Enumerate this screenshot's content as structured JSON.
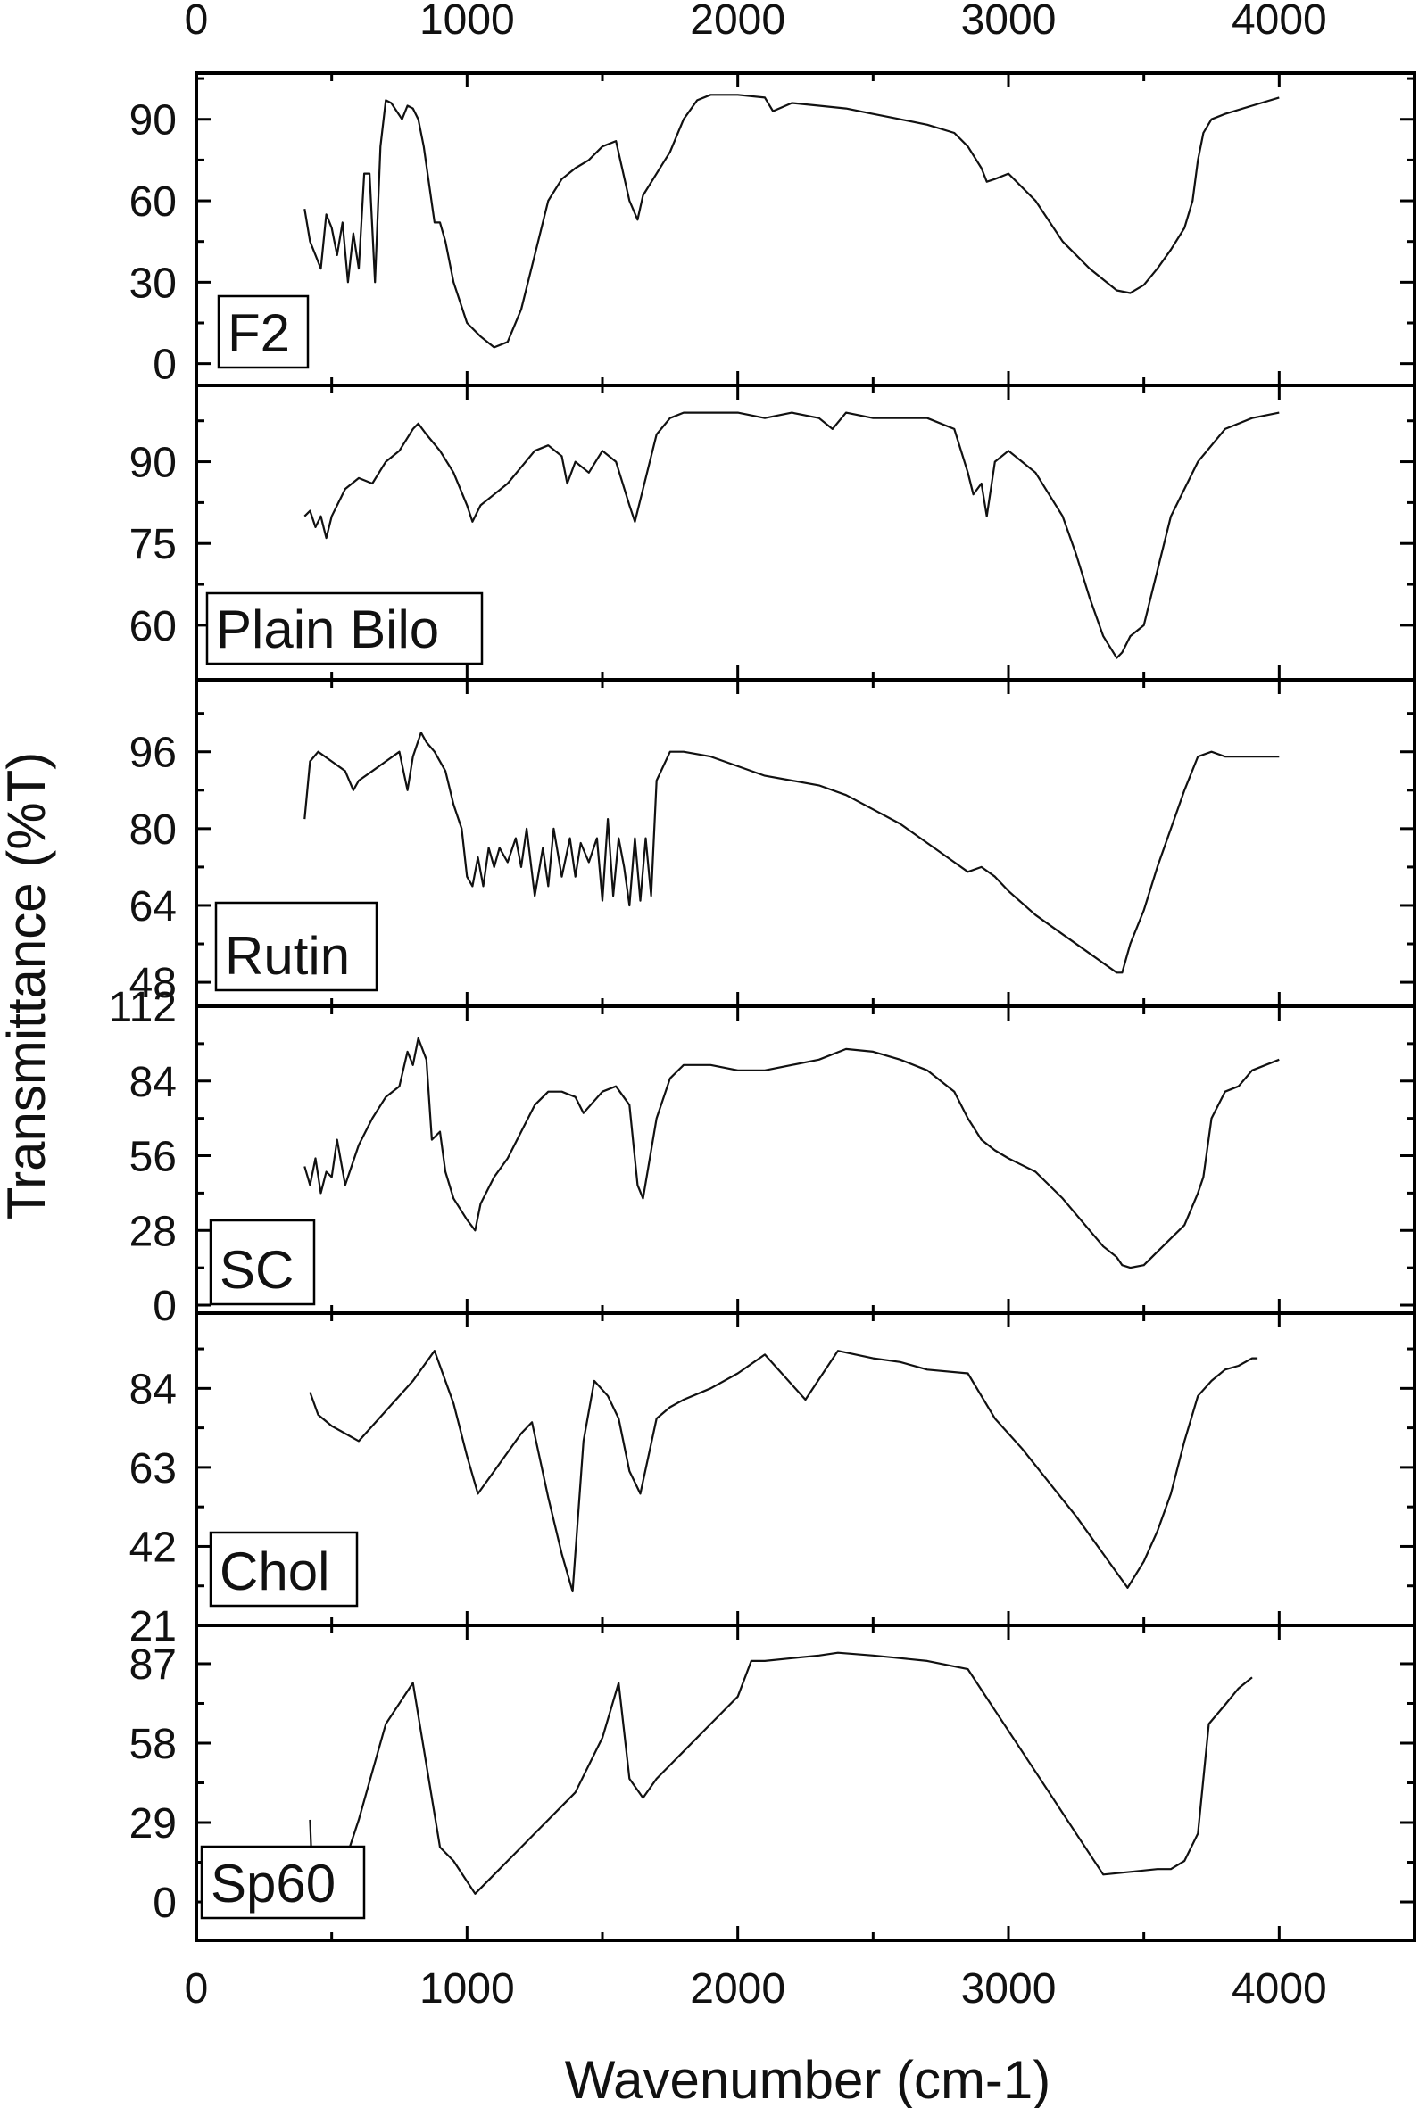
{
  "chart_data": {
    "type": "line",
    "xlabel": "Wavenumber (cm-1)",
    "ylabel": "Transmittance (%T)",
    "xlim": [
      0,
      4500
    ],
    "xticks": [
      0,
      1000,
      2000,
      3000,
      4000
    ],
    "xtick_labels": [
      "0",
      "1000",
      "2000",
      "3000",
      "4000"
    ],
    "grid": false,
    "panels": [
      {
        "name": "F2",
        "ylim": [
          -8,
          107
        ],
        "yticks": [
          0,
          30,
          60,
          90
        ],
        "ytick_labels": [
          "0",
          "30",
          "60",
          "90"
        ],
        "x": [
          400,
          420,
          440,
          460,
          480,
          500,
          520,
          540,
          560,
          580,
          600,
          620,
          640,
          660,
          680,
          700,
          720,
          760,
          780,
          800,
          820,
          840,
          880,
          900,
          920,
          950,
          1000,
          1050,
          1100,
          1150,
          1200,
          1250,
          1300,
          1350,
          1400,
          1450,
          1500,
          1550,
          1600,
          1630,
          1650,
          1700,
          1750,
          1800,
          1850,
          1900,
          2000,
          2100,
          2130,
          2200,
          2300,
          2400,
          2500,
          2600,
          2700,
          2800,
          2850,
          2900,
          2920,
          2950,
          3000,
          3100,
          3200,
          3300,
          3400,
          3450,
          3500,
          3550,
          3600,
          3650,
          3680,
          3700,
          3720,
          3750,
          3800,
          3900,
          4000
        ],
        "y": [
          57,
          45,
          40,
          35,
          55,
          50,
          40,
          52,
          30,
          48,
          35,
          70,
          70,
          30,
          80,
          97,
          96,
          90,
          95,
          94,
          90,
          80,
          52,
          52,
          45,
          30,
          15,
          10,
          6,
          8,
          20,
          40,
          60,
          68,
          72,
          75,
          80,
          82,
          60,
          53,
          62,
          70,
          78,
          90,
          97,
          99,
          99,
          98,
          93,
          96,
          95,
          94,
          92,
          90,
          88,
          85,
          80,
          72,
          67,
          68,
          70,
          60,
          45,
          35,
          27,
          26,
          29,
          35,
          42,
          50,
          60,
          75,
          85,
          90,
          92,
          95,
          98
        ]
      },
      {
        "name": "Plain Bilo",
        "ylim": [
          50,
          104
        ],
        "yticks": [
          60,
          75,
          90
        ],
        "ytick_labels": [
          "60",
          "75",
          "90"
        ],
        "x": [
          400,
          420,
          440,
          460,
          480,
          500,
          550,
          600,
          650,
          700,
          750,
          800,
          820,
          850,
          900,
          950,
          1000,
          1020,
          1050,
          1100,
          1150,
          1200,
          1250,
          1300,
          1350,
          1370,
          1400,
          1450,
          1500,
          1550,
          1600,
          1620,
          1650,
          1700,
          1750,
          1800,
          1900,
          2000,
          2100,
          2200,
          2300,
          2350,
          2400,
          2500,
          2600,
          2700,
          2800,
          2850,
          2870,
          2900,
          2920,
          2950,
          3000,
          3100,
          3200,
          3250,
          3300,
          3350,
          3400,
          3420,
          3450,
          3500,
          3550,
          3600,
          3700,
          3800,
          3900,
          4000
        ],
        "y": [
          80,
          81,
          78,
          80,
          76,
          80,
          85,
          87,
          86,
          90,
          92,
          96,
          97,
          95,
          92,
          88,
          82,
          79,
          82,
          84,
          86,
          89,
          92,
          93,
          91,
          86,
          90,
          88,
          92,
          90,
          82,
          79,
          85,
          95,
          98,
          99,
          99,
          99,
          98,
          99,
          98,
          96,
          99,
          98,
          98,
          98,
          96,
          88,
          84,
          86,
          80,
          90,
          92,
          88,
          80,
          73,
          65,
          58,
          54,
          55,
          58,
          60,
          70,
          80,
          90,
          96,
          98,
          99
        ]
      },
      {
        "name": "Rutin",
        "ylim": [
          43,
          111
        ],
        "yticks": [
          48,
          64,
          80,
          96
        ],
        "ytick_labels": [
          "48",
          "64",
          "80",
          "96"
        ],
        "x": [
          400,
          420,
          450,
          500,
          550,
          580,
          600,
          650,
          700,
          750,
          780,
          800,
          830,
          850,
          880,
          920,
          950,
          980,
          1000,
          1020,
          1040,
          1060,
          1080,
          1100,
          1120,
          1150,
          1180,
          1200,
          1220,
          1250,
          1280,
          1300,
          1320,
          1350,
          1380,
          1400,
          1420,
          1450,
          1480,
          1500,
          1520,
          1540,
          1560,
          1580,
          1600,
          1620,
          1640,
          1660,
          1680,
          1700,
          1750,
          1800,
          1900,
          2000,
          2100,
          2200,
          2300,
          2400,
          2500,
          2600,
          2700,
          2800,
          2850,
          2900,
          2950,
          3000,
          3100,
          3200,
          3300,
          3350,
          3400,
          3420,
          3450,
          3500,
          3550,
          3600,
          3650,
          3700,
          3750,
          3800,
          3900,
          4000
        ],
        "y": [
          82,
          94,
          96,
          94,
          92,
          88,
          90,
          92,
          94,
          96,
          88,
          95,
          100,
          98,
          96,
          92,
          85,
          80,
          70,
          68,
          74,
          68,
          76,
          72,
          76,
          73,
          78,
          72,
          80,
          66,
          76,
          68,
          80,
          70,
          78,
          70,
          77,
          73,
          78,
          65,
          82,
          66,
          78,
          72,
          64,
          78,
          65,
          78,
          66,
          90,
          96,
          96,
          95,
          93,
          91,
          90,
          89,
          87,
          84,
          81,
          77,
          73,
          71,
          72,
          70,
          67,
          62,
          58,
          54,
          52,
          50,
          50,
          56,
          63,
          72,
          80,
          88,
          95,
          96,
          95,
          95,
          95
        ]
      },
      {
        "name": "SC",
        "ylim": [
          -3,
          112
        ],
        "yticks": [
          0,
          28,
          56,
          84,
          112
        ],
        "ytick_labels": [
          "0",
          "28",
          "56",
          "84",
          "112"
        ],
        "x": [
          400,
          420,
          440,
          460,
          480,
          500,
          520,
          550,
          600,
          650,
          700,
          750,
          780,
          800,
          820,
          850,
          870,
          900,
          920,
          950,
          1000,
          1030,
          1050,
          1100,
          1150,
          1200,
          1250,
          1300,
          1350,
          1400,
          1430,
          1500,
          1550,
          1600,
          1630,
          1650,
          1700,
          1750,
          1800,
          1900,
          2000,
          2100,
          2200,
          2300,
          2400,
          2500,
          2600,
          2700,
          2800,
          2850,
          2900,
          2950,
          3000,
          3100,
          3200,
          3300,
          3350,
          3400,
          3420,
          3450,
          3500,
          3550,
          3600,
          3650,
          3700,
          3720,
          3750,
          3800,
          3850,
          3900,
          4000
        ],
        "y": [
          52,
          45,
          55,
          42,
          50,
          48,
          62,
          45,
          60,
          70,
          78,
          82,
          95,
          90,
          100,
          92,
          62,
          65,
          50,
          40,
          32,
          28,
          38,
          48,
          55,
          65,
          75,
          80,
          80,
          78,
          72,
          80,
          82,
          75,
          45,
          40,
          70,
          85,
          90,
          90,
          88,
          88,
          90,
          92,
          96,
          95,
          92,
          88,
          80,
          70,
          62,
          58,
          55,
          50,
          40,
          28,
          22,
          18,
          15,
          14,
          15,
          20,
          25,
          30,
          42,
          48,
          70,
          80,
          82,
          88,
          92
        ]
      },
      {
        "name": "Chol",
        "ylim": [
          21,
          104
        ],
        "yticks": [
          21,
          42,
          63,
          84
        ],
        "ytick_labels": [
          "21",
          "42",
          "63",
          "84"
        ],
        "x": [
          420,
          450,
          500,
          600,
          700,
          800,
          880,
          950,
          1000,
          1040,
          1100,
          1200,
          1240,
          1300,
          1350,
          1390,
          1430,
          1470,
          1520,
          1560,
          1600,
          1640,
          1700,
          1750,
          1800,
          1900,
          2000,
          2100,
          2250,
          2370,
          2500,
          2600,
          2700,
          2850,
          2950,
          3050,
          3150,
          3250,
          3350,
          3440,
          3500,
          3550,
          3600,
          3650,
          3700,
          3750,
          3800,
          3850,
          3900,
          3920
        ],
        "y": [
          83,
          77,
          74,
          70,
          78,
          86,
          94,
          80,
          66,
          56,
          62,
          72,
          75,
          55,
          40,
          30,
          70,
          86,
          82,
          76,
          62,
          56,
          76,
          79,
          81,
          84,
          88,
          93,
          81,
          94,
          92,
          91,
          89,
          88,
          76,
          68,
          59,
          50,
          40,
          31,
          38,
          46,
          56,
          70,
          82,
          86,
          89,
          90,
          92,
          92
        ]
      },
      {
        "name": "Sp60",
        "ylim": [
          -14,
          101
        ],
        "yticks": [
          0,
          29,
          58,
          87
        ],
        "ytick_labels": [
          "0",
          "29",
          "58",
          "87"
        ],
        "x": [
          420,
          430,
          460,
          500,
          550,
          600,
          700,
          800,
          900,
          950,
          1030,
          1100,
          1200,
          1400,
          1500,
          1560,
          1600,
          1650,
          1700,
          1800,
          1900,
          2000,
          2050,
          2100,
          2200,
          2300,
          2370,
          2500,
          2600,
          2700,
          2850,
          2950,
          3050,
          3150,
          3250,
          3350,
          3450,
          3550,
          3600,
          3650,
          3700,
          3740,
          3800,
          3850,
          3900
        ],
        "y": [
          30,
          5,
          -5,
          5,
          15,
          30,
          65,
          80,
          20,
          15,
          3,
          10,
          20,
          40,
          60,
          80,
          45,
          38,
          45,
          55,
          65,
          75,
          88,
          88,
          89,
          90,
          91,
          90,
          89,
          88,
          85,
          70,
          55,
          40,
          25,
          10,
          11,
          12,
          12,
          15,
          25,
          65,
          72,
          78,
          82
        ]
      }
    ]
  }
}
